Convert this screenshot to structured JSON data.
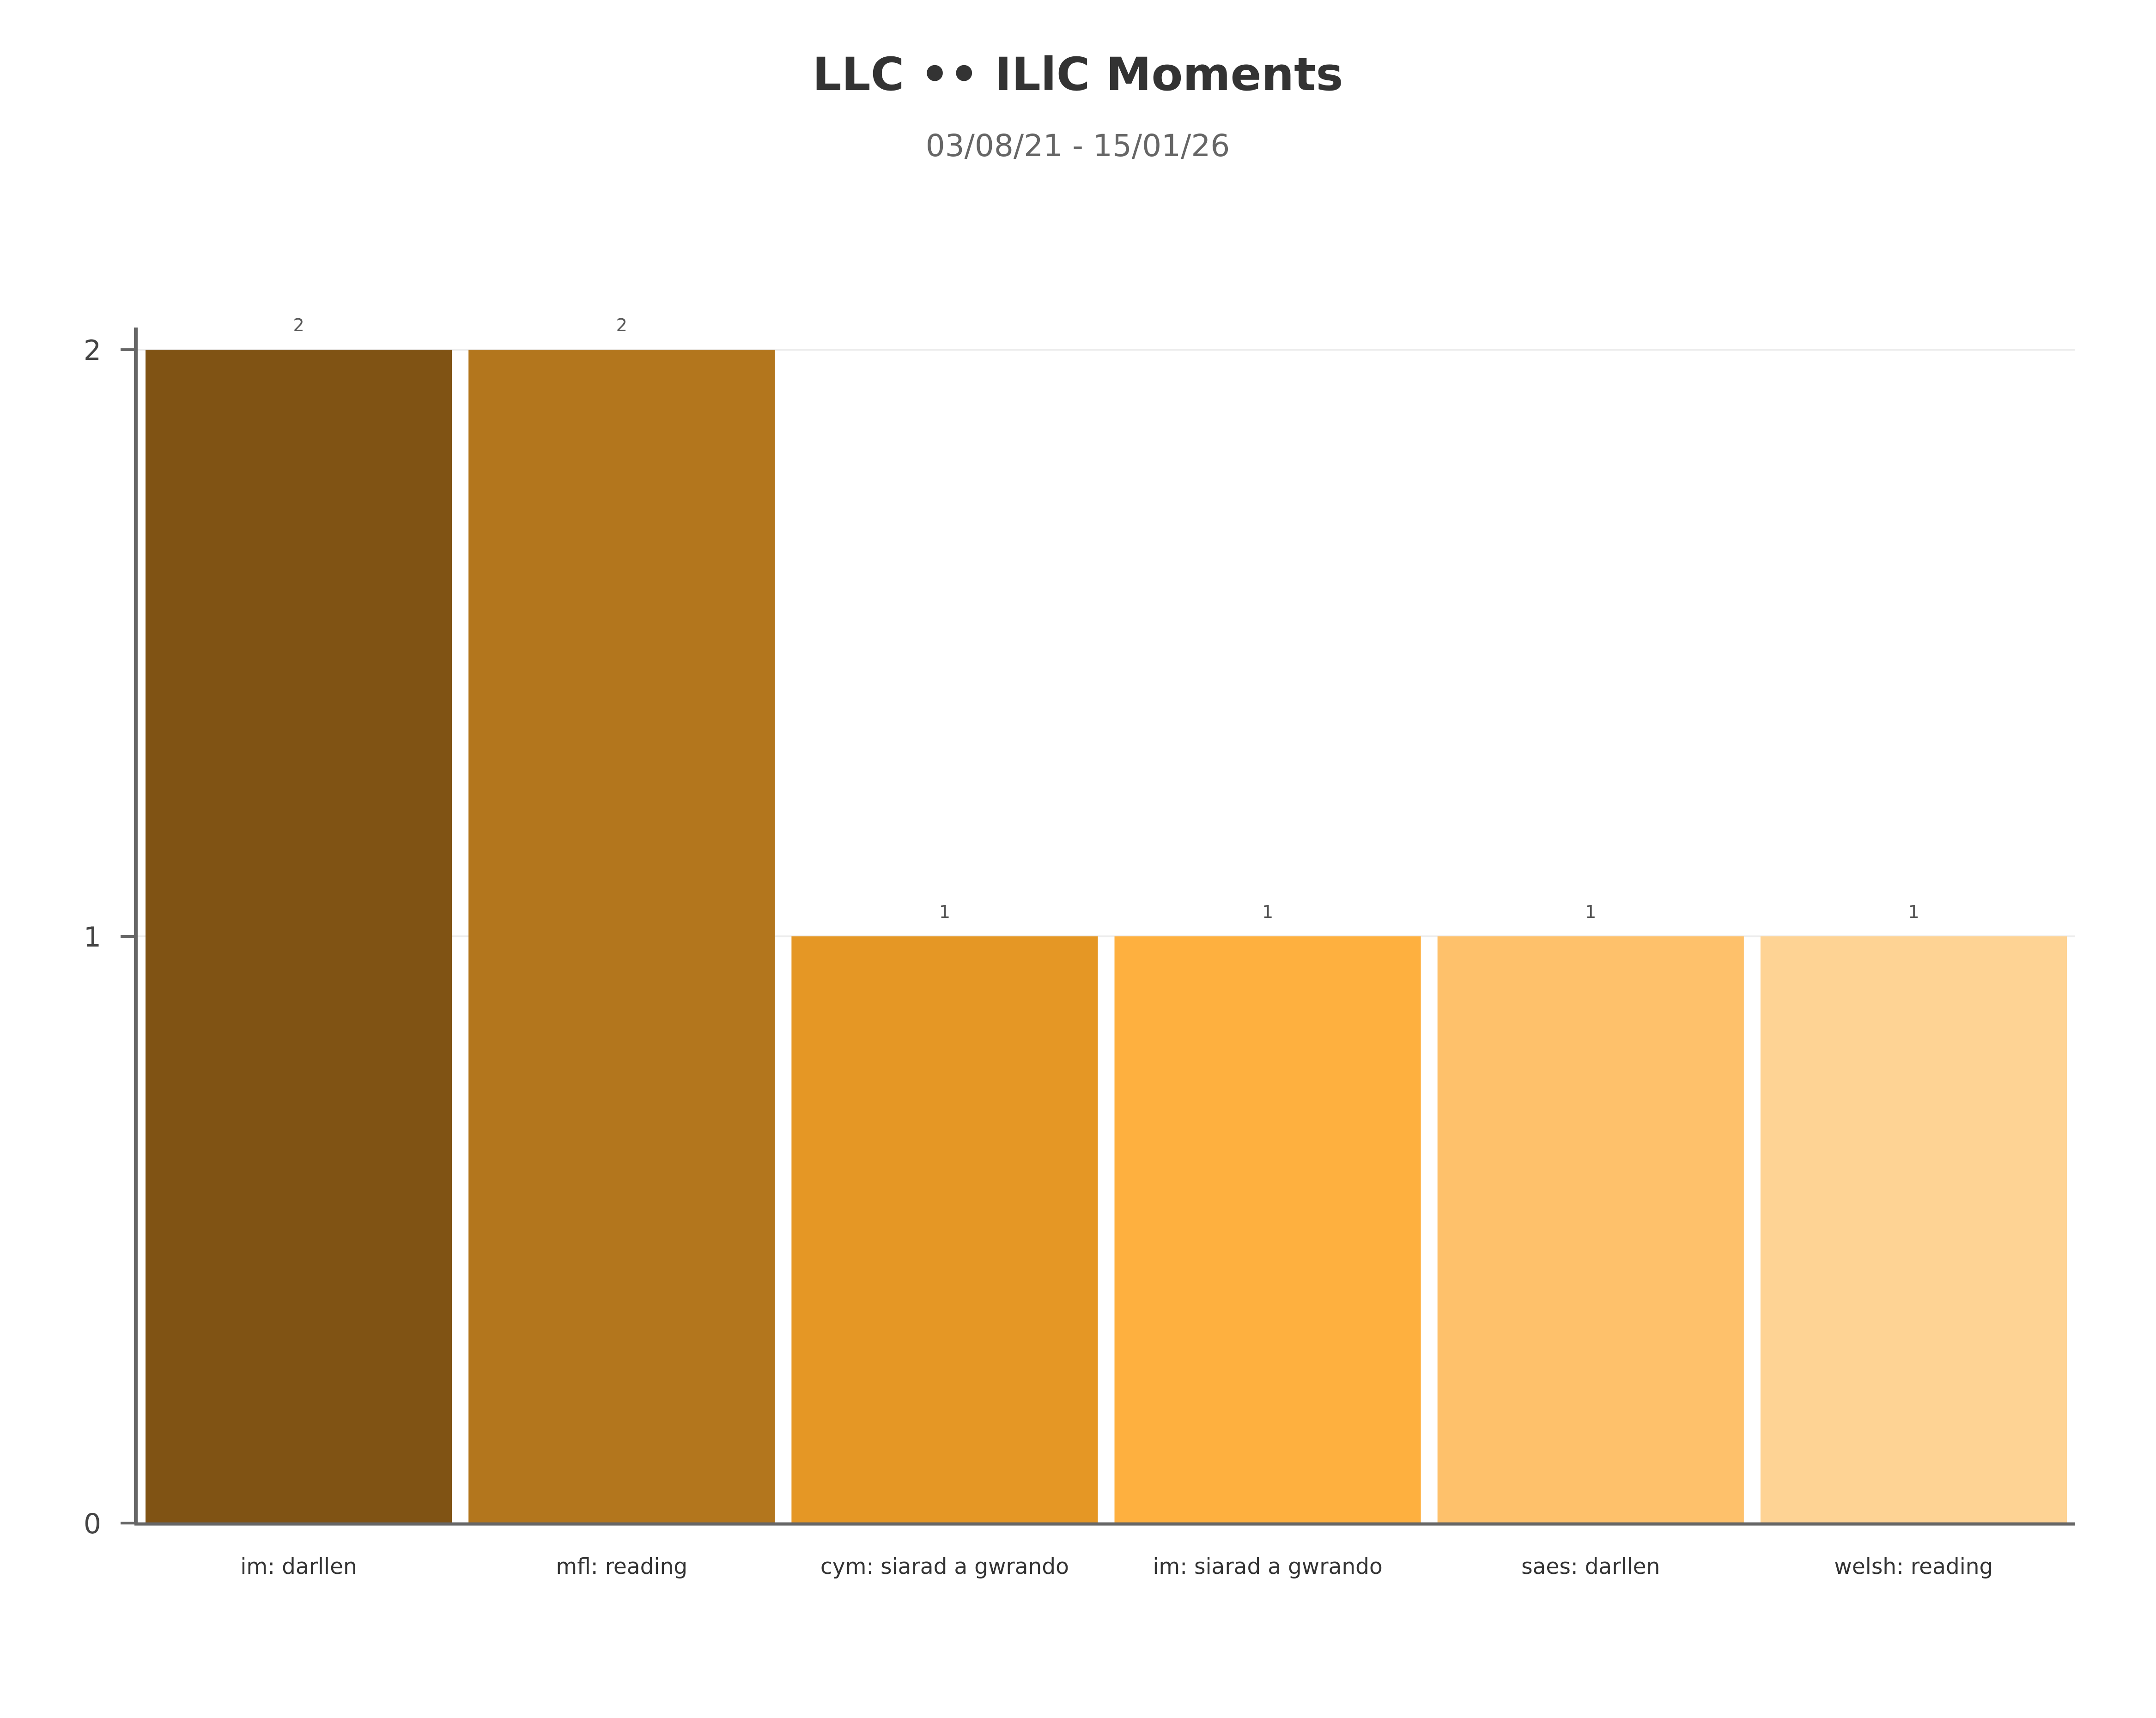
{
  "chart_data": {
    "type": "bar",
    "title": "LLC •• ILlC Moments",
    "subtitle": "03/08/21 - 15/01/26",
    "categories": [
      "im: darllen",
      "mfl: reading",
      "cym: siarad a gwrando",
      "im: siarad a gwrando",
      "saes: darllen",
      "welsh: reading"
    ],
    "values": [
      2,
      2,
      1,
      1,
      1,
      1
    ],
    "data_labels": [
      "2",
      "2",
      "1",
      "1",
      "1",
      "1"
    ],
    "colors": [
      "#805314",
      "#b3761d",
      "#e59725",
      "#feb03f",
      "#fec16b",
      "#fed394"
    ],
    "xlabel": "",
    "ylabel": "",
    "ylim": [
      0,
      2
    ],
    "yticks": [
      0,
      1,
      2
    ],
    "ytick_labels": [
      "0",
      "1",
      "2"
    ],
    "grid": true,
    "legend": "none"
  }
}
